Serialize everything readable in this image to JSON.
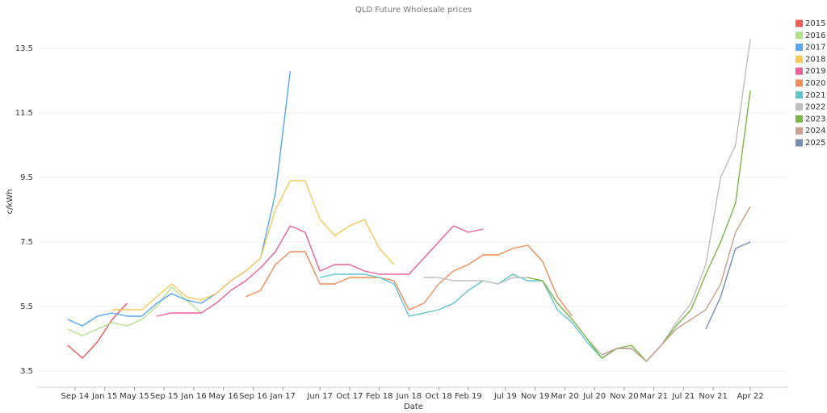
{
  "chart_data": {
    "type": "line",
    "title": "QLD Future Wholesale prices",
    "x_label": "Date",
    "y_label": "c/kWh",
    "x": [
      "2014-08",
      "2014-10",
      "2014-12",
      "2015-02",
      "2015-04",
      "2015-06",
      "2015-08",
      "2015-10",
      "2015-12",
      "2016-02",
      "2016-04",
      "2016-06",
      "2016-08",
      "2016-10",
      "2016-12",
      "2017-02",
      "2017-04",
      "2017-06",
      "2017-08",
      "2017-10",
      "2017-12",
      "2018-02",
      "2018-04",
      "2018-06",
      "2018-08",
      "2018-10",
      "2018-12",
      "2019-02",
      "2019-04",
      "2019-06",
      "2019-08",
      "2019-10",
      "2019-12",
      "2020-02",
      "2020-04",
      "2020-06",
      "2020-08",
      "2020-10",
      "2020-12",
      "2021-02",
      "2021-04",
      "2021-06",
      "2021-08",
      "2021-10",
      "2021-12",
      "2022-02",
      "2022-04"
    ],
    "xlim": [
      "2014-04",
      "2022-09"
    ],
    "xticks": [
      {
        "value": "2014-09",
        "label": "Sep 14"
      },
      {
        "value": "2015-01",
        "label": "Jan 15"
      },
      {
        "value": "2015-05",
        "label": "May 15"
      },
      {
        "value": "2015-09",
        "label": "Sep 15"
      },
      {
        "value": "2016-01",
        "label": "Jan 16"
      },
      {
        "value": "2016-05",
        "label": "May 16"
      },
      {
        "value": "2016-09",
        "label": "Sep 16"
      },
      {
        "value": "2017-01",
        "label": "Jan 17"
      },
      {
        "value": "2017-06",
        "label": "Jun 17"
      },
      {
        "value": "2017-10",
        "label": "Oct 17"
      },
      {
        "value": "2018-02",
        "label": "Feb 18"
      },
      {
        "value": "2018-06",
        "label": "Jun 18"
      },
      {
        "value": "2018-10",
        "label": "Oct 18"
      },
      {
        "value": "2019-02",
        "label": "Feb 19"
      },
      {
        "value": "2019-07",
        "label": "Jul 19"
      },
      {
        "value": "2019-11",
        "label": "Nov 19"
      },
      {
        "value": "2020-03",
        "label": "Mar 20"
      },
      {
        "value": "2020-07",
        "label": "Jul 20"
      },
      {
        "value": "2020-11",
        "label": "Nov 20"
      },
      {
        "value": "2021-03",
        "label": "Mar 21"
      },
      {
        "value": "2021-07",
        "label": "Jul 21"
      },
      {
        "value": "2021-11",
        "label": "Nov 21"
      },
      {
        "value": "2022-04",
        "label": "Apr 22"
      }
    ],
    "ylim": [
      3.0,
      14.5
    ],
    "yticks": [
      3.5,
      5.5,
      7.5,
      9.5,
      11.5,
      13.5
    ],
    "grid": true,
    "legend": "right",
    "series": [
      {
        "name": "2015",
        "color": "#ef5a5a",
        "values": [
          4.3,
          3.9,
          4.4,
          5.1,
          5.6,
          null,
          null,
          null,
          null,
          null,
          null,
          null,
          null,
          null,
          null,
          null,
          null,
          null,
          null,
          null,
          null,
          null,
          null,
          null,
          null,
          null,
          null,
          null,
          null,
          null,
          null,
          null,
          null,
          null,
          null,
          null,
          null,
          null,
          null,
          null,
          null,
          null,
          null,
          null,
          null,
          null,
          null
        ]
      },
      {
        "name": "2016",
        "color": "#b5e08a",
        "values": [
          4.8,
          4.6,
          4.8,
          5.0,
          4.9,
          5.1,
          5.5,
          6.1,
          5.7,
          5.3,
          null,
          null,
          null,
          null,
          null,
          null,
          null,
          null,
          null,
          null,
          null,
          null,
          null,
          null,
          null,
          null,
          null,
          null,
          null,
          null,
          null,
          null,
          null,
          null,
          null,
          null,
          null,
          null,
          null,
          null,
          null,
          null,
          null,
          null,
          null,
          null,
          null
        ]
      },
      {
        "name": "2017",
        "color": "#5aa5f0",
        "values": [
          5.1,
          4.9,
          5.2,
          5.3,
          5.2,
          5.2,
          5.6,
          5.9,
          5.7,
          5.6,
          5.9,
          6.3,
          6.6,
          7.0,
          9.0,
          12.8,
          null,
          null,
          null,
          null,
          null,
          null,
          null,
          null,
          null,
          null,
          null,
          null,
          null,
          null,
          null,
          null,
          null,
          null,
          null,
          null,
          null,
          null,
          null,
          null,
          null,
          null,
          null,
          null,
          null,
          null,
          null
        ]
      },
      {
        "name": "2018",
        "color": "#f5c95a",
        "values": [
          null,
          null,
          null,
          5.4,
          5.4,
          5.4,
          5.8,
          6.2,
          5.8,
          5.7,
          5.9,
          6.3,
          6.6,
          7.0,
          8.5,
          9.4,
          9.4,
          8.2,
          7.7,
          8.0,
          8.2,
          7.3,
          6.8,
          null,
          null,
          null,
          null,
          null,
          null,
          null,
          null,
          null,
          null,
          null,
          null,
          null,
          null,
          null,
          null,
          null,
          null,
          null,
          null,
          null,
          null,
          null,
          null
        ]
      },
      {
        "name": "2019",
        "color": "#e8609a",
        "values": [
          null,
          null,
          null,
          null,
          null,
          null,
          5.2,
          5.3,
          5.3,
          5.3,
          5.6,
          6.0,
          6.3,
          6.7,
          7.2,
          8.0,
          7.8,
          6.6,
          6.8,
          6.8,
          6.6,
          6.5,
          6.5,
          6.5,
          7.0,
          7.5,
          8.0,
          7.8,
          7.9,
          null,
          null,
          null,
          null,
          null,
          null,
          null,
          null,
          null,
          null,
          null,
          null,
          null,
          null,
          null,
          null,
          null,
          null
        ]
      },
      {
        "name": "2020",
        "color": "#ef8c5c",
        "values": [
          null,
          null,
          null,
          null,
          null,
          null,
          null,
          null,
          null,
          null,
          null,
          null,
          5.8,
          6.0,
          6.8,
          7.2,
          7.2,
          6.2,
          6.2,
          6.4,
          6.4,
          6.4,
          6.3,
          5.4,
          5.6,
          6.2,
          6.6,
          6.8,
          7.1,
          7.1,
          7.3,
          7.4,
          6.9,
          5.8,
          5.2,
          null,
          null,
          null,
          null,
          null,
          null,
          null,
          null,
          null,
          null,
          null,
          null
        ]
      },
      {
        "name": "2021",
        "color": "#5ec4c9",
        "values": [
          null,
          null,
          null,
          null,
          null,
          null,
          null,
          null,
          null,
          null,
          null,
          null,
          null,
          null,
          null,
          null,
          null,
          6.4,
          6.5,
          6.5,
          6.5,
          6.4,
          6.2,
          5.2,
          5.3,
          5.4,
          5.6,
          6.0,
          6.3,
          6.2,
          6.5,
          6.3,
          6.3,
          5.4,
          5.0,
          4.4,
          3.9,
          4.2,
          4.2,
          null,
          null,
          null,
          null,
          null,
          null,
          null,
          null
        ]
      },
      {
        "name": "2022",
        "color": "#bdbdbd",
        "values": [
          null,
          null,
          null,
          null,
          null,
          null,
          null,
          null,
          null,
          null,
          null,
          null,
          null,
          null,
          null,
          null,
          null,
          null,
          null,
          null,
          null,
          null,
          null,
          null,
          6.4,
          6.4,
          6.3,
          6.3,
          6.3,
          6.2,
          6.4,
          6.4,
          6.3,
          5.6,
          5.1,
          4.5,
          4.0,
          4.2,
          4.2,
          3.8,
          4.3,
          5.0,
          5.6,
          6.8,
          9.5,
          10.5,
          13.8
        ]
      },
      {
        "name": "2023",
        "color": "#7ab648",
        "values": [
          null,
          null,
          null,
          null,
          null,
          null,
          null,
          null,
          null,
          null,
          null,
          null,
          null,
          null,
          null,
          null,
          null,
          null,
          null,
          null,
          null,
          null,
          null,
          null,
          null,
          null,
          null,
          null,
          null,
          null,
          null,
          6.4,
          6.3,
          5.6,
          5.1,
          4.5,
          3.9,
          4.2,
          4.3,
          3.8,
          4.3,
          4.9,
          5.4,
          6.5,
          7.5,
          8.7,
          12.2
        ]
      },
      {
        "name": "2024",
        "color": "#c9a08f",
        "values": [
          null,
          null,
          null,
          null,
          null,
          null,
          null,
          null,
          null,
          null,
          null,
          null,
          null,
          null,
          null,
          null,
          null,
          null,
          null,
          null,
          null,
          null,
          null,
          null,
          null,
          null,
          null,
          null,
          null,
          null,
          null,
          null,
          null,
          null,
          null,
          null,
          4.0,
          4.2,
          4.2,
          3.8,
          4.3,
          4.8,
          5.1,
          5.4,
          6.2,
          7.8,
          8.6
        ]
      },
      {
        "name": "2025",
        "color": "#7a8bb8",
        "values": [
          null,
          null,
          null,
          null,
          null,
          null,
          null,
          null,
          null,
          null,
          null,
          null,
          null,
          null,
          null,
          null,
          null,
          null,
          null,
          null,
          null,
          null,
          null,
          null,
          null,
          null,
          null,
          null,
          null,
          null,
          null,
          null,
          null,
          null,
          null,
          null,
          null,
          null,
          null,
          null,
          null,
          null,
          null,
          4.8,
          5.8,
          7.3,
          7.5
        ]
      }
    ]
  }
}
